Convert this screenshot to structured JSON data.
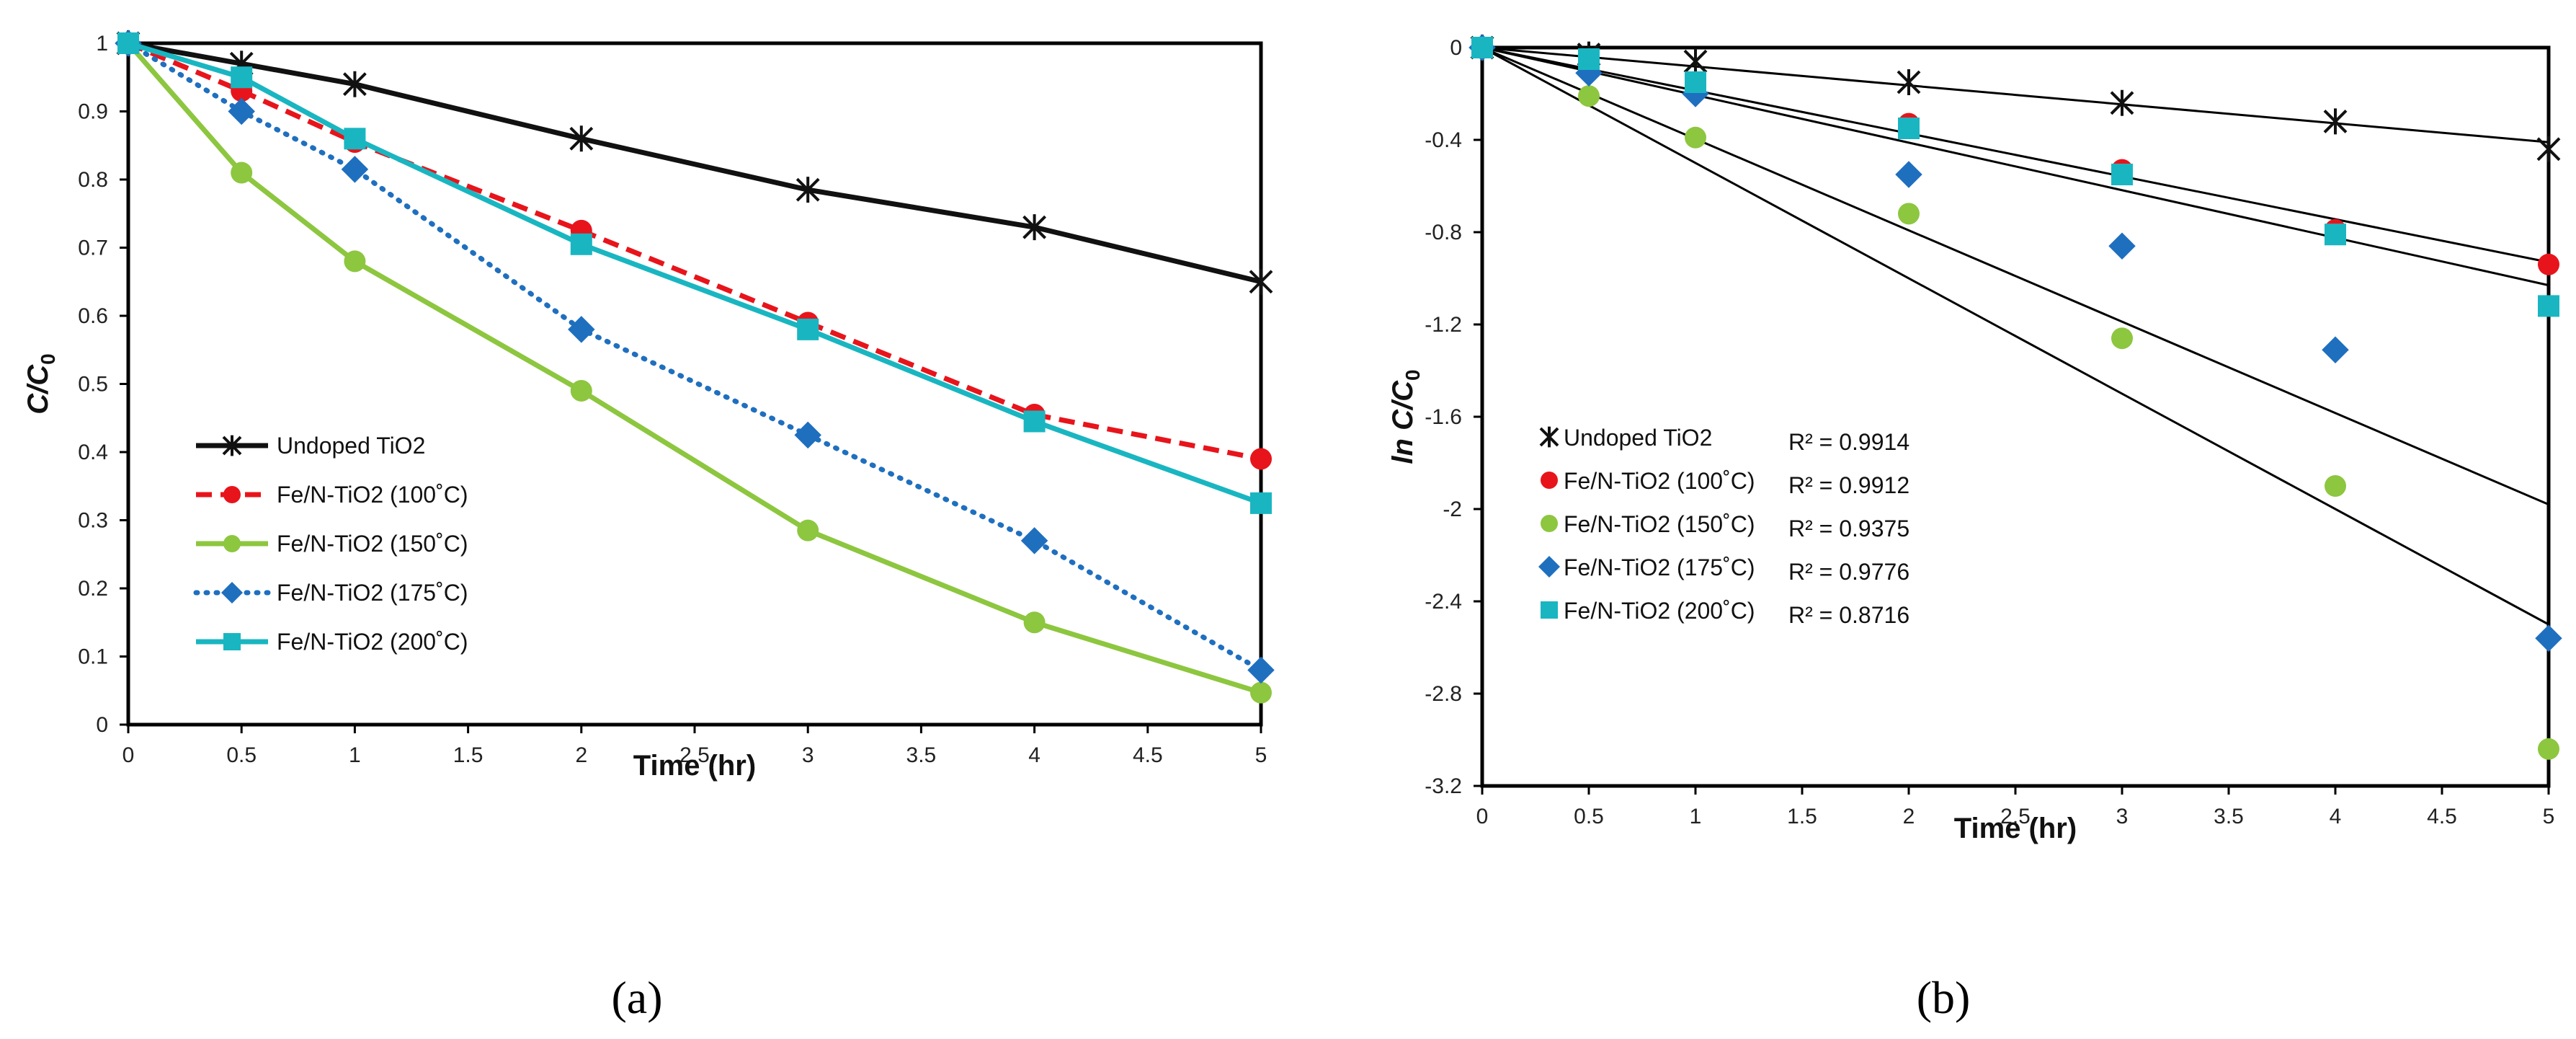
{
  "chart_data": [
    {
      "type": "line",
      "panel_label": "(a)",
      "xlabel": "Time (hr)",
      "ylabel_main": "C/C",
      "ylabel_sub": "0",
      "xlim": [
        0,
        5
      ],
      "ylim": [
        0,
        1
      ],
      "x_ticks": [
        "0",
        "0.5",
        "1",
        "1.5",
        "2",
        "2.5",
        "3",
        "3.5",
        "4",
        "4.5",
        "5"
      ],
      "y_ticks": [
        "0",
        "0.1",
        "0.2",
        "0.3",
        "0.4",
        "0.5",
        "0.6",
        "0.7",
        "0.8",
        "0.9",
        "1"
      ],
      "x": [
        0,
        0.5,
        1,
        2,
        3,
        4,
        5
      ],
      "legend_position": "bottom-left",
      "series": [
        {
          "name": "Undoped TiO2",
          "color": "#111111",
          "marker": "star",
          "line": "solid",
          "values": [
            1.0,
            0.97,
            0.94,
            0.86,
            0.785,
            0.73,
            0.65
          ]
        },
        {
          "name": "Fe/N-TiO2 (100˚C)",
          "color": "#e8141b",
          "marker": "circle",
          "line": "dashed",
          "values": [
            1.0,
            0.93,
            0.855,
            0.725,
            0.59,
            0.455,
            0.39
          ]
        },
        {
          "name": "Fe/N-TiO2 (150˚C)",
          "color": "#8dc63f",
          "marker": "circle",
          "line": "solid",
          "values": [
            1.0,
            0.81,
            0.68,
            0.49,
            0.285,
            0.15,
            0.047
          ]
        },
        {
          "name": "Fe/N-TiO2 (175˚C)",
          "color": "#1f6fbf",
          "marker": "diamond",
          "line": "dotted",
          "values": [
            1.0,
            0.9,
            0.815,
            0.58,
            0.425,
            0.27,
            0.08
          ]
        },
        {
          "name": "Fe/N-TiO2 (200˚C)",
          "color": "#19b6c1",
          "marker": "square",
          "line": "solid",
          "values": [
            1.0,
            0.95,
            0.86,
            0.705,
            0.58,
            0.445,
            0.325
          ]
        }
      ]
    },
    {
      "type": "scatter",
      "panel_label": "(b)",
      "xlabel": "Time (hr)",
      "ylabel_main": "ln C/C",
      "ylabel_sub": "0",
      "xlim": [
        0,
        5
      ],
      "ylim": [
        -3.2,
        0
      ],
      "x_ticks": [
        "0",
        "0.5",
        "1",
        "1.5",
        "2",
        "2.5",
        "3",
        "3.5",
        "4",
        "4.5",
        "5"
      ],
      "y_ticks": [
        "0",
        "-0.4",
        "-0.8",
        "-1.2",
        "-1.6",
        "-2",
        "-2.4",
        "-2.8",
        "-3.2"
      ],
      "x": [
        0,
        0.5,
        1,
        2,
        3,
        4,
        5
      ],
      "legend_position": "middle-left",
      "series": [
        {
          "name": "Undoped TiO2",
          "r2": "R² = 0.9914",
          "color": "#111111",
          "marker": "star",
          "values": [
            0,
            -0.03,
            -0.06,
            -0.15,
            -0.24,
            -0.32,
            -0.44
          ],
          "trend_end": -0.41
        },
        {
          "name": "Fe/N-TiO2 (100˚C)",
          "r2": "R² = 0.9912",
          "color": "#e8141b",
          "marker": "circle",
          "values": [
            0,
            -0.07,
            -0.16,
            -0.33,
            -0.53,
            -0.79,
            -0.94
          ],
          "trend_end": -0.93
        },
        {
          "name": "Fe/N-TiO2 (150˚C)",
          "r2": "R² = 0.9375",
          "color": "#8dc63f",
          "marker": "circle",
          "values": [
            0,
            -0.21,
            -0.39,
            -0.72,
            -1.26,
            -1.9,
            -3.04
          ],
          "trend_end": -2.5
        },
        {
          "name": "Fe/N-TiO2 (175˚C)",
          "r2": "R² = 0.9776",
          "color": "#1f6fbf",
          "marker": "diamond",
          "values": [
            0,
            -0.11,
            -0.2,
            -0.55,
            -0.86,
            -1.31,
            -2.56
          ],
          "trend_end": -1.98
        },
        {
          "name": "Fe/N-TiO2 (200˚C)",
          "r2": "R² = 0.8716",
          "color": "#19b6c1",
          "marker": "square",
          "values": [
            0,
            -0.05,
            -0.15,
            -0.35,
            -0.55,
            -0.81,
            -1.12
          ],
          "trend_end": -1.03
        }
      ]
    }
  ]
}
